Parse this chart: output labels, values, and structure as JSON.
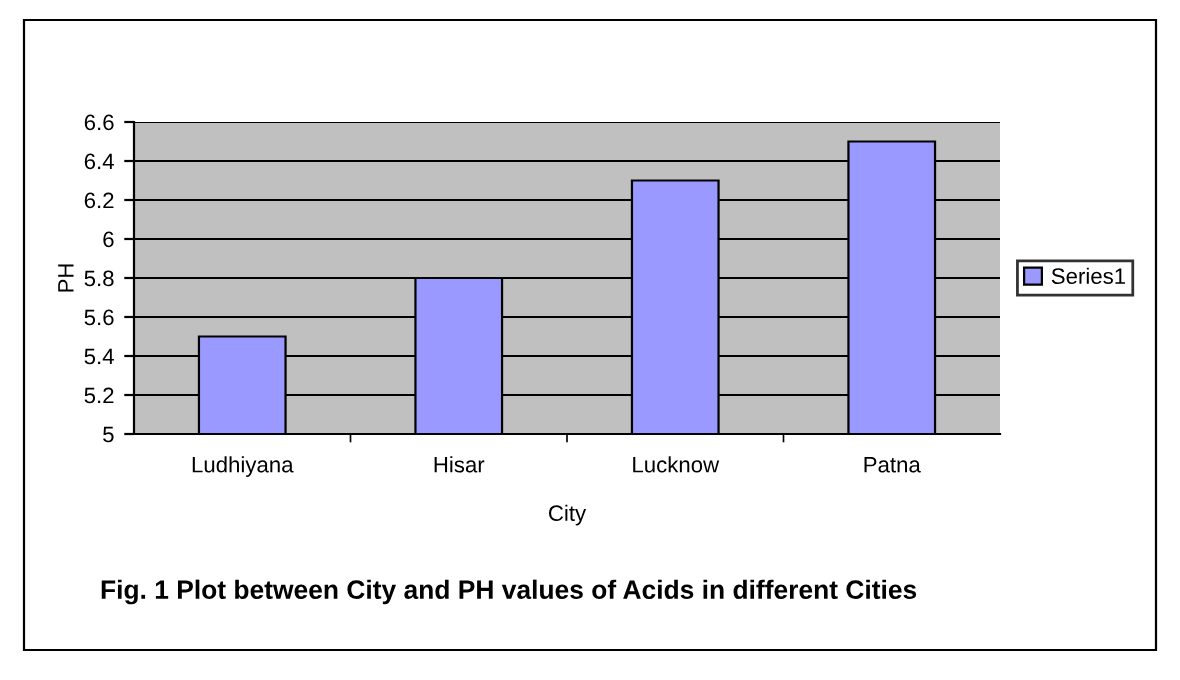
{
  "chart_data": {
    "type": "bar",
    "xlabel": "City",
    "ylabel": "PH",
    "annotations": [
      "Fig. 1 Plot between City and PH values of Acids in different Cities"
    ],
    "categories": [
      "Ludhiyana",
      "Hisar",
      "Lucknow",
      "Patna"
    ],
    "series": [
      {
        "name": "Series1",
        "color": "#9999ff",
        "values": [
          5.5,
          5.8,
          6.3,
          6.5
        ]
      }
    ],
    "ylim": [
      5,
      6.6
    ],
    "yticks": [
      5,
      5.2,
      5.4,
      5.6,
      5.8,
      6,
      6.2,
      6.4,
      6.6
    ],
    "grid": "y",
    "legend": "right"
  }
}
